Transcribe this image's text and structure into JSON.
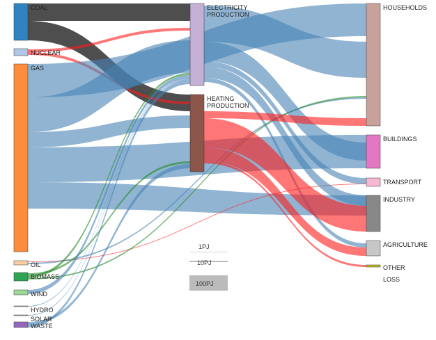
{
  "colors": {
    "gas_flow": "#4682b4",
    "coal_flow": "#222222",
    "heat_flow": "#ff1a1a",
    "biomass_flow": "#228b22",
    "flow_opacity": 0.6,
    "node_stroke": "#333333"
  },
  "nodes": [
    {
      "id": "coal",
      "label": "COAL",
      "color": "#2f83c1"
    },
    {
      "id": "nuclear",
      "label": "NUCLEAR",
      "color": "#aec7e8"
    },
    {
      "id": "gas",
      "label": "GAS",
      "color": "#fd8d3c"
    },
    {
      "id": "oil",
      "label": "OIL",
      "color": "#fdd0a2"
    },
    {
      "id": "biomass",
      "label": "BIOMASS",
      "color": "#31a354"
    },
    {
      "id": "wind",
      "label": "WIND",
      "color": "#a1d99b"
    },
    {
      "id": "hydro",
      "label": "HYDRO",
      "color": "#cccccc"
    },
    {
      "id": "solar",
      "label": "SOLAR",
      "color": "#cccccc"
    },
    {
      "id": "waste",
      "label": "WASTE",
      "color": "#9467bd"
    },
    {
      "id": "electricity",
      "label": "ELECTRICITY PRODUCTION",
      "label_lines": [
        "ELECTRICITY",
        "PRODUCTION"
      ],
      "color": "#c5b0d5"
    },
    {
      "id": "heating",
      "label": "HEATING PRODUCTION",
      "label_lines": [
        "HEATING",
        "PRODUCTION"
      ],
      "color": "#8c564b"
    },
    {
      "id": "households",
      "label": "HOUSEHOLDS",
      "color": "#c9a19b"
    },
    {
      "id": "buildings",
      "label": "BUILDINGS",
      "color": "#e377c2"
    },
    {
      "id": "transport",
      "label": "TRANSPORT",
      "color": "#f7b6d2"
    },
    {
      "id": "industry",
      "label": "INDUSTRY",
      "color": "#888888"
    },
    {
      "id": "agriculture",
      "label": "AGRICULTURE",
      "color": "#c7c7c7"
    },
    {
      "id": "other",
      "label": "OTHER",
      "color": "#bcbd22"
    },
    {
      "id": "loss",
      "label": "LOSS",
      "color": "#ffffff"
    }
  ],
  "links": [
    {
      "source": "coal",
      "target": "electricity",
      "color": "coal"
    },
    {
      "source": "coal",
      "target": "heating",
      "color": "coal"
    },
    {
      "source": "nuclear",
      "target": "electricity",
      "color": "heat"
    },
    {
      "source": "nuclear",
      "target": "heating",
      "color": "heat"
    },
    {
      "source": "gas",
      "target": "households",
      "color": "gas"
    },
    {
      "source": "gas",
      "target": "electricity",
      "color": "gas"
    },
    {
      "source": "gas",
      "target": "heating",
      "color": "gas"
    },
    {
      "source": "gas",
      "target": "buildings",
      "color": "gas"
    },
    {
      "source": "gas",
      "target": "industry",
      "color": "gas"
    },
    {
      "source": "oil",
      "target": "transport",
      "color": "heat"
    },
    {
      "source": "oil",
      "target": "households",
      "color": "gas"
    },
    {
      "source": "biomass",
      "target": "heating",
      "color": "biomass"
    },
    {
      "source": "biomass",
      "target": "electricity",
      "color": "biomass"
    },
    {
      "source": "biomass",
      "target": "households",
      "color": "biomass"
    },
    {
      "source": "wind",
      "target": "electricity",
      "color": "gas"
    },
    {
      "source": "hydro",
      "target": "electricity",
      "color": "gas"
    },
    {
      "source": "solar",
      "target": "electricity",
      "color": "gas"
    },
    {
      "source": "waste",
      "target": "heating",
      "color": "gas"
    },
    {
      "source": "waste",
      "target": "electricity",
      "color": "gas"
    },
    {
      "source": "electricity",
      "target": "households",
      "color": "gas"
    },
    {
      "source": "electricity",
      "target": "buildings",
      "color": "gas"
    },
    {
      "source": "electricity",
      "target": "transport",
      "color": "gas"
    },
    {
      "source": "electricity",
      "target": "industry",
      "color": "gas"
    },
    {
      "source": "electricity",
      "target": "agriculture",
      "color": "gas"
    },
    {
      "source": "heating",
      "target": "households",
      "color": "heat"
    },
    {
      "source": "heating",
      "target": "industry",
      "color": "heat"
    },
    {
      "source": "heating",
      "target": "agriculture",
      "color": "heat"
    },
    {
      "source": "heating",
      "target": "other",
      "color": "heat"
    }
  ],
  "legend": [
    {
      "label": "1PJ",
      "value": 1
    },
    {
      "label": "10PJ",
      "value": 10
    },
    {
      "label": "100PJ",
      "value": 100
    }
  ]
}
